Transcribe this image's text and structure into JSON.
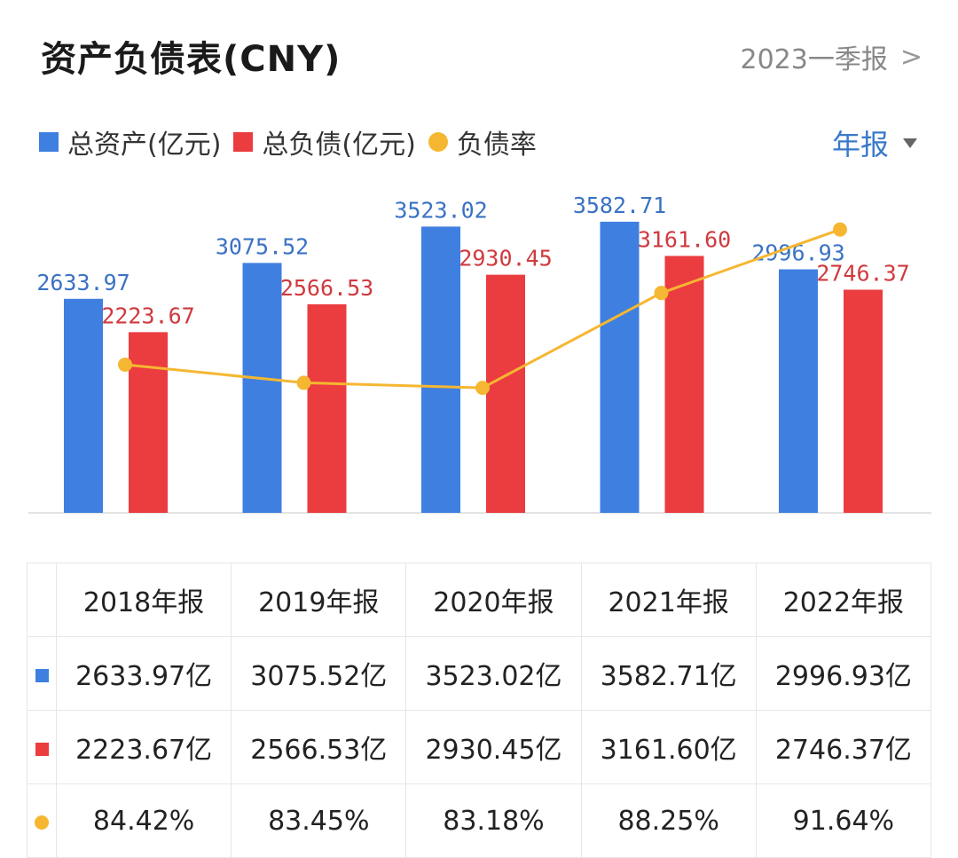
{
  "header": {
    "title": "资产负债表(CNY)",
    "period_label": "2023一季报",
    "chevron": ">"
  },
  "legend": {
    "assets_label": "总资产(亿元)",
    "liabilities_label": "总负债(亿元)",
    "ratio_label": "负债率"
  },
  "period_select": {
    "label": "年报"
  },
  "colors": {
    "assets": "#3f7fe0",
    "liabilities": "#eb3c40",
    "ratio": "#f5b731",
    "assets_label": "#3a72c4",
    "liabilities_label": "#cf3a3f"
  },
  "chart_data": {
    "type": "bar",
    "categories": [
      "2018年报",
      "2019年报",
      "2020年报",
      "2021年报",
      "2022年报"
    ],
    "series": [
      {
        "name": "总资产(亿元)",
        "values": [
          2633.97,
          3075.52,
          3523.02,
          3582.71,
          2996.93
        ],
        "labels": [
          "2633.97",
          "3075.52",
          "3523.02",
          "3582.71",
          "2996.93"
        ]
      },
      {
        "name": "总负债(亿元)",
        "values": [
          2223.67,
          2566.53,
          2930.45,
          3161.6,
          2746.37
        ],
        "labels": [
          "2223.67",
          "2566.53",
          "2930.45",
          "3161.60",
          "2746.37"
        ]
      },
      {
        "name": "负债率",
        "type": "line",
        "values": [
          84.42,
          83.45,
          83.18,
          88.25,
          91.64
        ]
      }
    ],
    "ylim": [
      0,
      3800
    ],
    "ratio_ylim": [
      76.5,
      93.0
    ]
  },
  "table": {
    "headers": [
      "2018年报",
      "2019年报",
      "2020年报",
      "2021年报",
      "2022年报"
    ],
    "assets_row": [
      "2633.97亿",
      "3075.52亿",
      "3523.02亿",
      "3582.71亿",
      "2996.93亿"
    ],
    "liabilities_row": [
      "2223.67亿",
      "2566.53亿",
      "2930.45亿",
      "3161.60亿",
      "2746.37亿"
    ],
    "ratio_row": [
      "84.42%",
      "83.45%",
      "83.18%",
      "88.25%",
      "91.64%"
    ]
  }
}
